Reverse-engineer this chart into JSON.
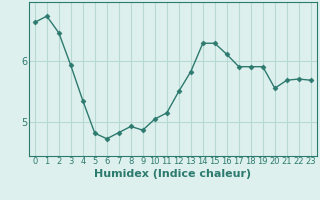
{
  "x": [
    0,
    1,
    2,
    3,
    4,
    5,
    6,
    7,
    8,
    9,
    10,
    11,
    12,
    13,
    14,
    15,
    16,
    17,
    18,
    19,
    20,
    21,
    22,
    23
  ],
  "y": [
    6.62,
    6.72,
    6.45,
    5.92,
    5.35,
    4.82,
    4.73,
    4.83,
    4.93,
    4.87,
    5.05,
    5.15,
    5.5,
    5.82,
    6.28,
    6.28,
    6.1,
    5.9,
    5.9,
    5.9,
    5.55,
    5.68,
    5.7,
    5.68
  ],
  "line_color": "#2d7a6e",
  "marker": "D",
  "marker_size": 2.5,
  "bg_color": "#ddf0ee",
  "grid_color": "#b8d8d4",
  "xlabel": "Humidex (Indice chaleur)",
  "yticks": [
    5,
    6
  ],
  "ylim": [
    4.45,
    6.95
  ],
  "xlim": [
    -0.5,
    23.5
  ],
  "tick_label_color": "#2d7a6e",
  "xlabel_color": "#2d7a6e",
  "xlabel_fontsize": 8,
  "tick_fontsize": 7,
  "linewidth": 1.0
}
